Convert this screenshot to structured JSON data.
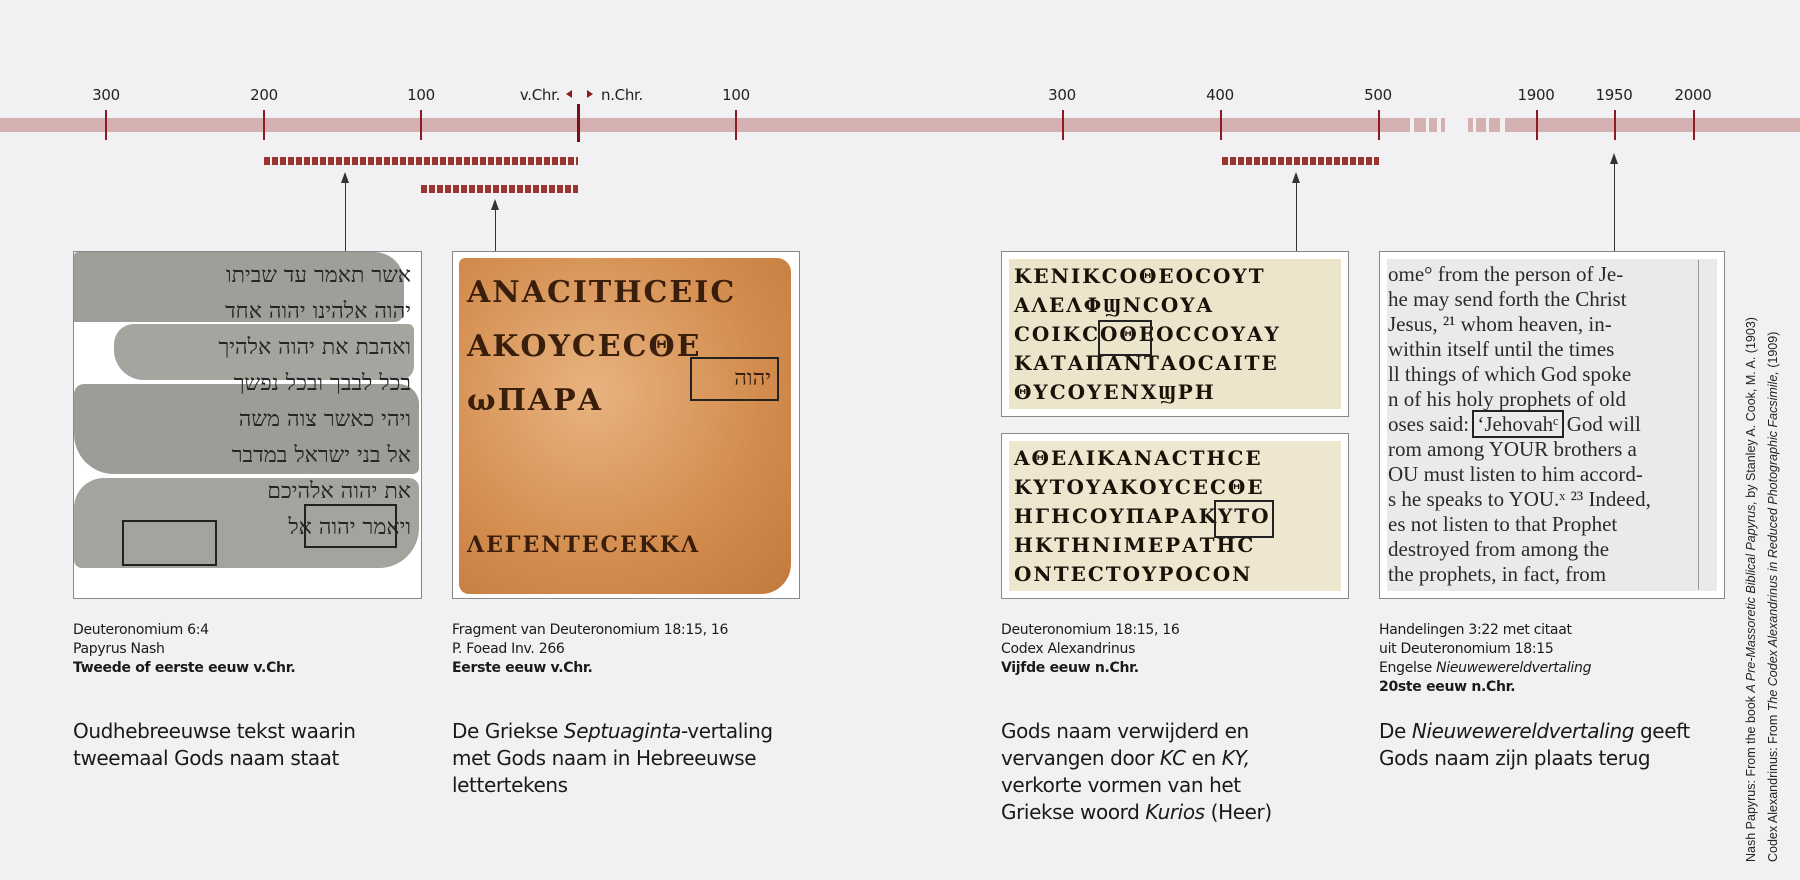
{
  "timeline": {
    "bc_ticks": [
      "300",
      "200",
      "100"
    ],
    "divider_bc": "v.Chr.",
    "divider_ad": "n.Chr.",
    "ad_ticks_early": [
      "100",
      "300",
      "400",
      "500"
    ],
    "ad_ticks_modern": [
      "1900",
      "1950",
      "2000"
    ],
    "colors": {
      "bar": "#d4b0b0",
      "tick": "#8e1b1f",
      "range": "#9a3530"
    }
  },
  "items": [
    {
      "lines": [
        "Deuteronomium 6:4",
        "Papyrus Nash"
      ],
      "date": "Tweede of eerste eeuw v.Chr.",
      "description": "Oudhebreeuwse tekst waarin tweemaal Gods naam staat",
      "image_text": [
        "אשר תאמר עד שביתו",
        "יהוה אלהינו יהוה אחד",
        "ואהבת את יהוה אלהיך",
        "בכל לבבך ובכל נפשך",
        "ויהי כאשר צוה משה",
        "אל בני ישראל במדבר",
        "את יהוה אלהיכם",
        "ויאמר יהוה אל"
      ]
    },
    {
      "lines": [
        "Fragment van Deuteronomium 18:15, 16",
        "P. Foead Inv. 266"
      ],
      "date": "Eerste eeuw v.Chr.",
      "description_pre": "De Griekse ",
      "description_em": "Septuaginta",
      "description_post": "-vertaling met Gods naam in Hebreeuwse lettertekens",
      "image_text": [
        "ΑΝΑCΙΤΗCΕΙC",
        "ΑΚΟΥCΕCΘΕ",
        "ωΠΑΡΑ",
        "ΛΕΓΕΝΤΕCΕΚΚΛ"
      ],
      "tetragrammaton": "יהוה"
    },
    {
      "lines": [
        "Deuteronomium 18:15, 16",
        "Codex Alexandrinus"
      ],
      "date": "Vijfde eeuw n.Chr.",
      "description_1": "Gods naam verwijderd en vervangen door ",
      "kc": "KC",
      "description_2": " en ",
      "ky": "KY,",
      "description_3": " verkorte vormen van het Griekse woord ",
      "kurios": "Kurios",
      "description_4": " (Heer)",
      "image_text_top": [
        "ΚΕΝΙΚCΟΘΕΟCΟΥΤ",
        "ΑΛΕΛΦϢΝCΟΥΑ",
        "CΟΙΚCΟΘΕΟCCΟΥΑΥ",
        "ΚΑΤΑΠΑΝΤΑΟCΑΙΤΕ",
        "ΘΥCΟΥΕΝΧϢΡΗ"
      ],
      "image_text_bottom": [
        "ΑΘΕΛΙΚΑΝΑCΤΗCΕ",
        "ΚΥΤΟΥΑΚΟΥCΕCΘΕ",
        "ΗΓΗCΟΥΠΑΡΑΚΥΤΟ",
        "ΗΚΤΗΝΙΜΕΡΑΤΗC",
        "ΟΝΤΕCΤΟΥΡΟCΟΝ"
      ]
    },
    {
      "lines": [
        "Handelingen 3:22 met citaat",
        "uit Deuteronomium 18:15"
      ],
      "lang_pre": "Engelse ",
      "lang_em": "Nieuwewereldvertaling",
      "date": "20ste eeuw n.Chr.",
      "description_pre": "De ",
      "description_em": "Nieuwewereldvertaling",
      "description_post": " geeft Gods naam zijn plaats terug",
      "image_text": [
        "ome° from the person of Je-",
        "he may send forth the Christ",
        "Jesus, ²¹ whom heaven, in-",
        "within itself until the times",
        "ll things of which God spoke",
        "n of his holy prophets of old",
        "oses said: ",
        "God will",
        "rom among YOUR brothers a",
        "OU must listen to him accord-",
        "s he speaks to YOU.ˣ ²³ Indeed,",
        "es not listen to that Prophet",
        "destroyed from among the",
        "the prophets, in fact, from"
      ],
      "highlight": "‘Jehovahᶜ"
    }
  ],
  "credits": {
    "line1_pre": "Nash Papyrus: From the book ",
    "line1_em": "A Pre-Massoretic Biblical Papyrus,",
    "line1_post": " by Stanley A. Cook, M. A. (1903)",
    "line2_pre": "Codex Alexandrinus: From ",
    "line2_em": "The Codex Alexandrinus in Reduced Photographic Facsimile,",
    "line2_post": " (1909)"
  }
}
